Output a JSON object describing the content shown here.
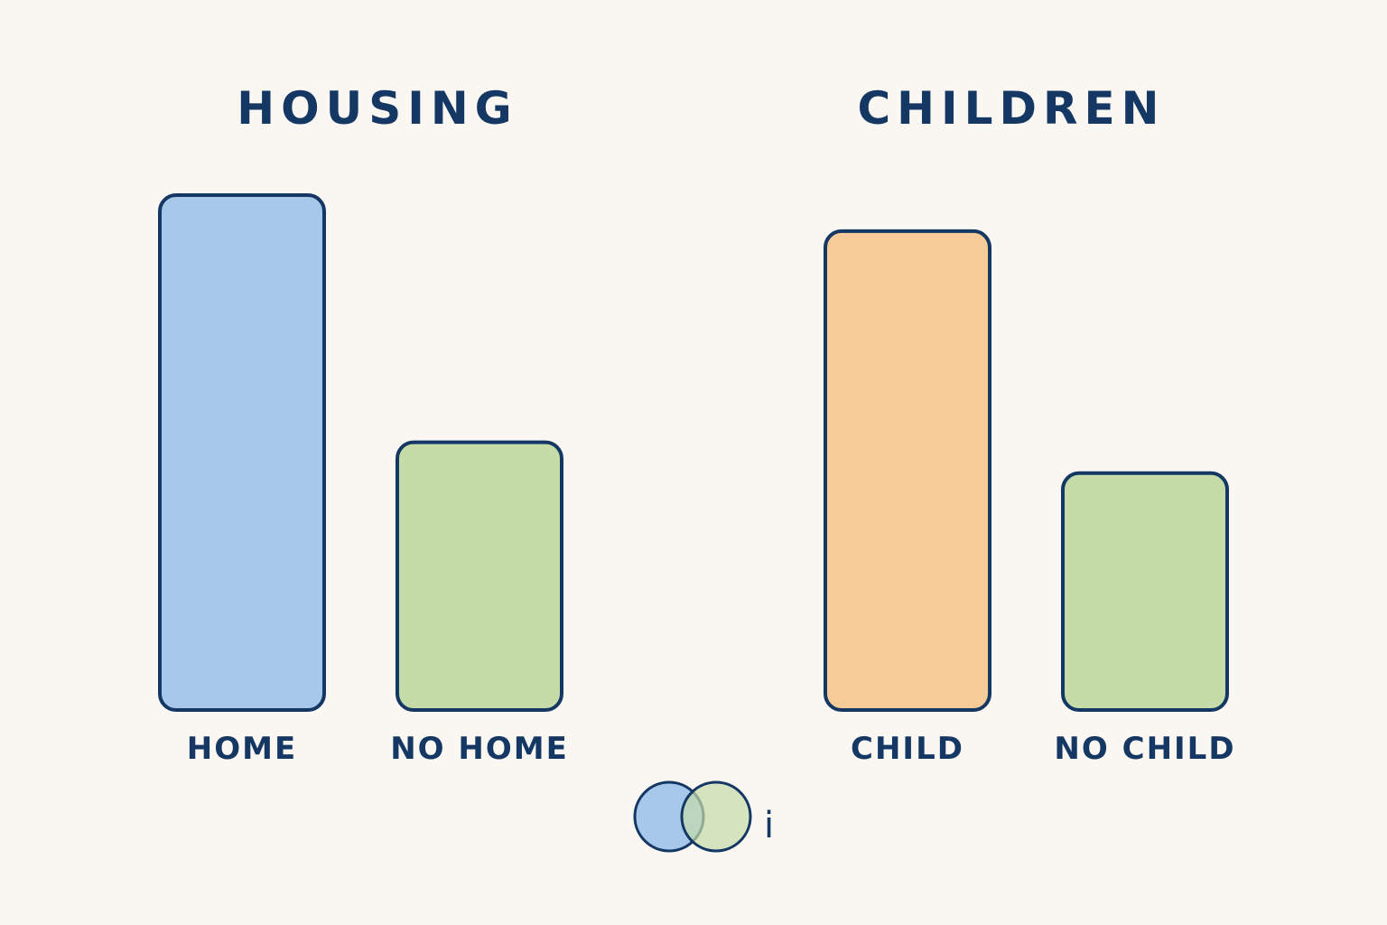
{
  "chart_data": [
    {
      "type": "bar",
      "title": "HOUSING",
      "categories": [
        "HOME",
        "NO HOME"
      ],
      "values": [
        100,
        52
      ],
      "colors": [
        "#a6c8ea",
        "#c5dca8"
      ],
      "ylim": [
        0,
        100
      ],
      "grid": false
    },
    {
      "type": "bar",
      "title": "CHILDREN",
      "categories": [
        "CHILD",
        "NO CHILD"
      ],
      "values": [
        93,
        46
      ],
      "colors": [
        "#f5cb98",
        "#c5dca8"
      ],
      "ylim": [
        0,
        100
      ],
      "grid": false
    }
  ],
  "legend": {
    "icon": "venn-overlap-icon",
    "text": "i",
    "colors": [
      "#a6c8ea",
      "#c5dca8"
    ]
  },
  "colors": {
    "outline": "#143763",
    "background": "#faf7f2"
  }
}
